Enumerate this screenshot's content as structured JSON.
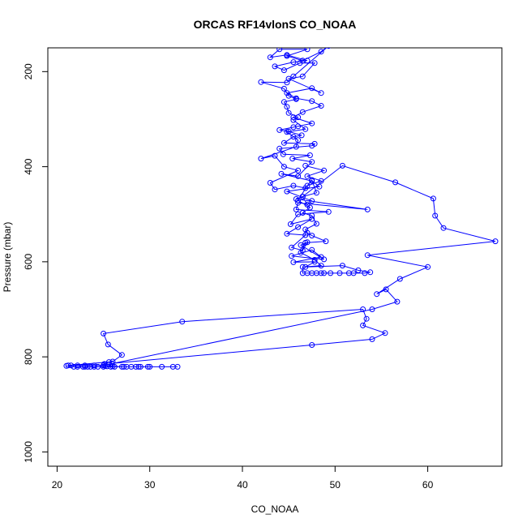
{
  "chart_data": {
    "type": "line",
    "title": "ORCAS RF14vlonS CO_NOAA",
    "xlabel": "CO_NOAA",
    "ylabel": "Pressure (mbar)",
    "xlim": [
      19,
      68
    ],
    "ylim": [
      1030,
      150
    ],
    "y_reversed": true,
    "x_ticks": [
      20,
      30,
      40,
      50,
      60
    ],
    "y_ticks": [
      200,
      400,
      600,
      800,
      1000
    ],
    "grid": false,
    "legend": "none",
    "color": "#0000ff",
    "marker": "open-circle",
    "series": [
      {
        "points": [
          [
            21.0,
            819
          ],
          [
            21.8,
            821
          ],
          [
            22.2,
            821
          ],
          [
            22.8,
            821
          ],
          [
            23.0,
            821
          ],
          [
            23.3,
            821
          ],
          [
            23.6,
            821
          ],
          [
            24.0,
            821
          ],
          [
            24.4,
            821
          ],
          [
            25.0,
            821
          ],
          [
            25.4,
            820
          ],
          [
            25.8,
            821
          ],
          [
            26.2,
            821
          ],
          [
            27.0,
            821
          ],
          [
            27.5,
            821
          ],
          [
            28.0,
            821
          ],
          [
            28.5,
            821
          ],
          [
            29.0,
            821
          ],
          [
            29.8,
            821
          ],
          [
            31.3,
            821
          ],
          [
            33.0,
            821
          ],
          [
            32.5,
            821
          ],
          [
            30.0,
            821
          ],
          [
            28.8,
            821
          ],
          [
            27.2,
            821
          ],
          [
            26.0,
            820
          ],
          [
            25.2,
            819
          ],
          [
            25.1,
            815
          ],
          [
            25.6,
            811
          ],
          [
            25.9,
            814
          ],
          [
            47.5,
            775
          ],
          [
            54.0,
            763
          ],
          [
            55.4,
            750
          ],
          [
            53.0,
            734
          ],
          [
            53.4,
            720
          ],
          [
            53.0,
            700
          ],
          [
            33.5,
            726
          ],
          [
            25.0,
            751
          ],
          [
            25.5,
            774
          ],
          [
            27.0,
            796
          ],
          [
            26.0,
            810
          ],
          [
            21.2,
            818
          ],
          [
            21.5,
            818
          ],
          [
            22.2,
            818
          ],
          [
            23.0,
            818
          ],
          [
            24.0,
            818
          ],
          [
            25.0,
            818
          ],
          [
            54.0,
            700
          ],
          [
            56.7,
            684
          ],
          [
            55.5,
            658
          ],
          [
            54.5,
            668
          ],
          [
            57.0,
            636
          ],
          [
            60.0,
            611
          ],
          [
            53.5,
            586
          ],
          [
            67.3,
            557
          ],
          [
            61.7,
            529
          ],
          [
            60.8,
            503
          ],
          [
            60.6,
            467
          ],
          [
            56.5,
            433
          ],
          [
            50.8,
            398
          ],
          [
            46.5,
            463
          ],
          [
            47.0,
            480
          ],
          [
            47.5,
            472
          ],
          [
            44.8,
            452
          ],
          [
            48.3,
            442
          ],
          [
            47.5,
            430
          ],
          [
            44.2,
            415
          ],
          [
            46.0,
            420
          ],
          [
            47.5,
            390
          ],
          [
            45.4,
            383
          ],
          [
            47.3,
            376
          ],
          [
            44.4,
            374
          ],
          [
            44.0,
            362
          ],
          [
            47.5,
            356
          ],
          [
            47.8,
            352
          ],
          [
            44.5,
            350
          ],
          [
            45.5,
            337
          ],
          [
            46.4,
            334
          ],
          [
            45.0,
            326
          ],
          [
            44.0,
            323
          ],
          [
            45.5,
            317
          ],
          [
            46.0,
            315
          ],
          [
            47.5,
            309
          ],
          [
            45.5,
            296
          ],
          [
            46.5,
            285
          ],
          [
            48.5,
            272
          ],
          [
            47.5,
            262
          ],
          [
            45.8,
            256
          ],
          [
            44.8,
            245
          ],
          [
            47.5,
            235
          ],
          [
            48.5,
            245
          ],
          [
            45.0,
            215
          ],
          [
            46.5,
            210
          ],
          [
            47.8,
            182
          ],
          [
            46.2,
            182
          ],
          [
            44.5,
            197
          ],
          [
            43.5,
            189
          ],
          [
            45.5,
            180
          ],
          [
            47.0,
            177
          ],
          [
            44.8,
            165
          ],
          [
            43.0,
            170
          ],
          [
            44.0,
            153
          ],
          [
            47.0,
            153
          ],
          [
            44.8,
            167
          ],
          [
            46.5,
            177
          ],
          [
            48.5,
            158
          ],
          [
            49.3,
            146
          ],
          [
            45.5,
            210
          ],
          [
            44.8,
            223
          ],
          [
            42.0,
            222
          ],
          [
            44.5,
            236
          ],
          [
            45.0,
            251
          ],
          [
            45.8,
            258
          ],
          [
            44.5,
            264
          ],
          [
            44.8,
            274
          ],
          [
            45.0,
            287
          ],
          [
            46.0,
            296
          ],
          [
            45.5,
            302
          ],
          [
            46.8,
            321
          ],
          [
            44.8,
            327
          ],
          [
            46.0,
            344
          ],
          [
            45.8,
            358
          ],
          [
            42.0,
            383
          ],
          [
            43.5,
            377
          ],
          [
            44.5,
            400
          ],
          [
            46.0,
            408
          ],
          [
            43.0,
            434
          ],
          [
            43.5,
            448
          ],
          [
            45.5,
            440
          ],
          [
            46.8,
            445
          ],
          [
            47.5,
            428
          ],
          [
            48.0,
            455
          ],
          [
            46.5,
            463
          ],
          [
            45.8,
            468
          ],
          [
            53.5,
            490
          ],
          [
            46.0,
            476
          ],
          [
            45.8,
            490
          ],
          [
            49.3,
            495
          ],
          [
            46.0,
            500
          ],
          [
            45.2,
            521
          ],
          [
            47.5,
            510
          ],
          [
            46.0,
            527
          ],
          [
            44.8,
            541
          ],
          [
            46.8,
            544
          ],
          [
            45.3,
            570
          ],
          [
            46.5,
            576
          ],
          [
            47.0,
            559
          ],
          [
            46.3,
            565
          ],
          [
            48.8,
            595
          ],
          [
            45.3,
            588
          ],
          [
            47.5,
            575
          ],
          [
            48.5,
            590
          ],
          [
            45.5,
            601
          ],
          [
            47.8,
            600
          ],
          [
            46.8,
            611
          ],
          [
            50.8,
            608
          ],
          [
            52.5,
            618
          ],
          [
            53.8,
            622
          ],
          [
            53.2,
            624
          ],
          [
            52.0,
            624
          ],
          [
            51.5,
            624
          ],
          [
            50.5,
            624
          ],
          [
            49.5,
            624
          ],
          [
            48.8,
            624
          ],
          [
            48.5,
            624
          ],
          [
            48.0,
            624
          ],
          [
            47.5,
            624
          ],
          [
            47.0,
            624
          ],
          [
            46.5,
            624
          ],
          [
            46.5,
            611
          ],
          [
            48.5,
            608
          ],
          [
            47.8,
            596
          ],
          [
            46.3,
            581
          ],
          [
            46.8,
            560
          ],
          [
            49.0,
            557
          ],
          [
            47.5,
            545
          ],
          [
            47.0,
            539
          ],
          [
            46.8,
            532
          ],
          [
            48.0,
            520
          ],
          [
            47.5,
            503
          ],
          [
            46.5,
            497
          ],
          [
            47.3,
            486
          ],
          [
            46.0,
            471
          ],
          [
            47.0,
            440
          ],
          [
            48.5,
            430
          ],
          [
            47.0,
            420
          ],
          [
            48.8,
            408
          ],
          [
            46.8,
            398
          ]
        ]
      }
    ]
  }
}
